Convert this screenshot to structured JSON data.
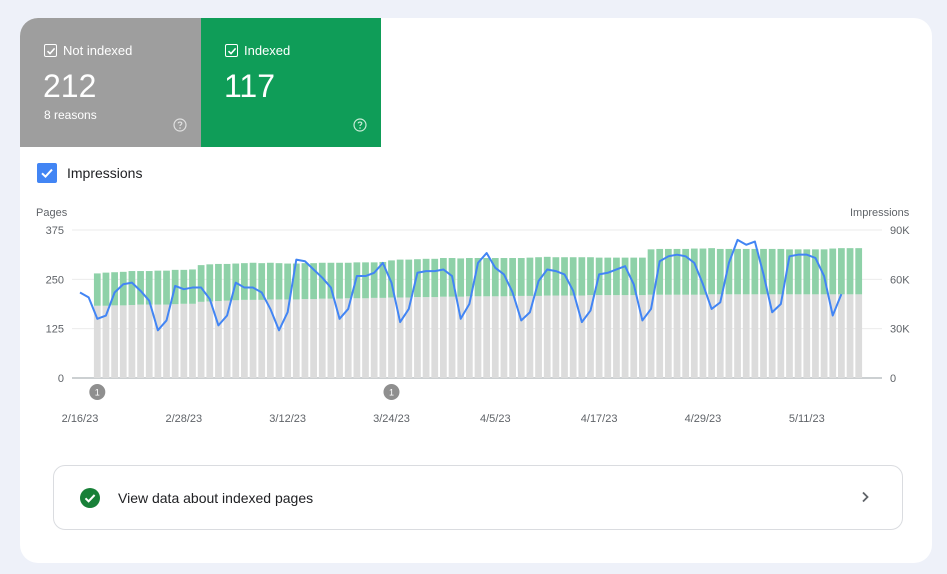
{
  "tiles": {
    "not_indexed": {
      "title": "Not indexed",
      "count": "212",
      "sub": "8 reasons"
    },
    "indexed": {
      "title": "Indexed",
      "count": "117"
    }
  },
  "impressions_toggle": {
    "label": "Impressions",
    "checked": true
  },
  "colors": {
    "not_indexed_tile": "#9e9e9e",
    "indexed_tile": "#0f9d58",
    "indexed_bar": "#8ed1a8",
    "not_indexed_bar": "#dcdcdc",
    "impressions_line": "#4285f4"
  },
  "icons": {
    "tile_checkbox": "checkbox-checked-icon",
    "help": "help-circle-icon",
    "success": "check-circle-icon",
    "chevron": "chevron-right-icon"
  },
  "chart_data": {
    "type": "bar",
    "left_axis": {
      "label": "Pages",
      "ticks": [
        "375",
        "250",
        "125",
        "0"
      ],
      "ylim": [
        0,
        375
      ]
    },
    "right_axis": {
      "label": "Impressions",
      "ticks": [
        "90K",
        "60K",
        "30K",
        "0"
      ],
      "ylim": [
        0,
        90000
      ]
    },
    "x_ticks": [
      "2/16/23",
      "2/28/23",
      "3/12/23",
      "3/24/23",
      "4/5/23",
      "4/17/23",
      "4/29/23",
      "5/11/23"
    ],
    "x_range": [
      "2023-02-16",
      "2023-05-19"
    ],
    "annotations": [
      {
        "label": "1",
        "date": "2023-02-18"
      },
      {
        "label": "1",
        "date": "2023-03-24"
      }
    ],
    "series": [
      {
        "name": "Not indexed",
        "start_date": "2023-02-18",
        "values": [
          183,
          183,
          184,
          184,
          185,
          186,
          186,
          186,
          186,
          187,
          188,
          188,
          193,
          194,
          195,
          196,
          197,
          198,
          198,
          198,
          199,
          199,
          199,
          199,
          200,
          200,
          201,
          201,
          201,
          202,
          202,
          202,
          203,
          203,
          204,
          204,
          204,
          205,
          205,
          205,
          206,
          206,
          206,
          207,
          207,
          207,
          207,
          207,
          208,
          208,
          208,
          208,
          209,
          209,
          209,
          209,
          209,
          210,
          210,
          210,
          210,
          210,
          210,
          210,
          211,
          211,
          211,
          211,
          211,
          211,
          211,
          212,
          212,
          212,
          212,
          212,
          212,
          212,
          212,
          212,
          212,
          212,
          212,
          212,
          212,
          212,
          212,
          212,
          212
        ]
      },
      {
        "name": "Indexed",
        "start_date": "2023-02-18",
        "values": [
          82,
          84,
          84,
          85,
          86,
          85,
          85,
          86,
          86,
          87,
          86,
          87,
          93,
          94,
          94,
          93,
          93,
          93,
          94,
          93,
          93,
          92,
          91,
          91,
          91,
          91,
          91,
          91,
          91,
          90,
          91,
          91,
          90,
          91,
          94,
          96,
          96,
          96,
          97,
          97,
          98,
          98,
          97,
          97,
          97,
          97,
          97,
          97,
          96,
          96,
          97,
          98,
          98,
          97,
          97,
          97,
          97,
          96,
          95,
          95,
          95,
          95,
          95,
          95,
          115,
          116,
          116,
          116,
          116,
          117,
          117,
          117,
          115,
          115,
          115,
          115,
          115,
          115,
          115,
          115,
          114,
          114,
          114,
          114,
          114,
          116,
          117,
          117,
          117
        ]
      },
      {
        "name": "Impressions",
        "start_date": "2023-02-16",
        "values": [
          52000,
          49000,
          36000,
          38000,
          52000,
          57000,
          58000,
          53000,
          47000,
          29000,
          35000,
          56000,
          54000,
          55000,
          55000,
          48000,
          32000,
          38000,
          58000,
          55000,
          55000,
          52000,
          42000,
          29000,
          40000,
          72000,
          71000,
          66000,
          61000,
          55000,
          36000,
          42000,
          62000,
          62000,
          64000,
          70000,
          58000,
          34000,
          42000,
          64000,
          65000,
          65000,
          66000,
          62000,
          36000,
          45000,
          70000,
          76000,
          67000,
          63000,
          52000,
          35000,
          40000,
          59000,
          66000,
          65000,
          63000,
          53000,
          34000,
          41000,
          63000,
          64000,
          66000,
          68000,
          57000,
          35000,
          42000,
          71000,
          74000,
          75000,
          74000,
          70000,
          57000,
          42000,
          46000,
          70000,
          84000,
          81000,
          83000,
          63000,
          40000,
          45000,
          74000,
          75000,
          75000,
          73000,
          62000,
          38000,
          51000
        ]
      }
    ]
  },
  "link": {
    "label": "View data about indexed pages"
  }
}
